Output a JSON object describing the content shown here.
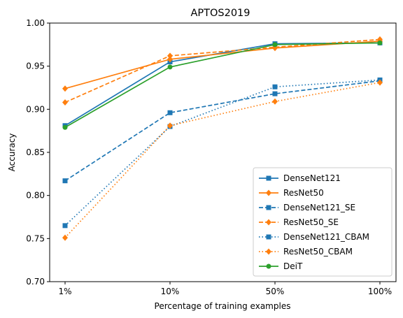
{
  "chart_data": {
    "type": "line",
    "title": "APTOS2019",
    "xlabel": "Percentage of training examples",
    "ylabel": "Accuracy",
    "categories": [
      "1%",
      "10%",
      "50%",
      "100%"
    ],
    "ylim": [
      0.7,
      1.0
    ],
    "yticks": [
      0.7,
      0.75,
      0.8,
      0.85,
      0.9,
      0.95,
      1.0
    ],
    "ytick_labels": [
      "0.70",
      "0.75",
      "0.80",
      "0.85",
      "0.90",
      "0.95",
      "1.00"
    ],
    "grid": false,
    "legend_position": "lower-right",
    "series": [
      {
        "name": "DenseNet121",
        "color": "#1f77b4",
        "line_style": "solid",
        "marker": "square",
        "values": [
          0.881,
          0.955,
          0.976,
          0.977
        ]
      },
      {
        "name": "ResNet50",
        "color": "#ff7f0e",
        "line_style": "solid",
        "marker": "diamond",
        "values": [
          0.924,
          0.958,
          0.971,
          0.979
        ]
      },
      {
        "name": "DenseNet121_SE",
        "color": "#1f77b4",
        "line_style": "dashed",
        "marker": "square",
        "values": [
          0.817,
          0.896,
          0.918,
          0.933
        ]
      },
      {
        "name": "ResNet50_SE",
        "color": "#ff7f0e",
        "line_style": "dashed",
        "marker": "diamond",
        "values": [
          0.908,
          0.962,
          0.972,
          0.981
        ]
      },
      {
        "name": "DenseNet121_CBAM",
        "color": "#1f77b4",
        "line_style": "dotted",
        "marker": "square",
        "values": [
          0.765,
          0.88,
          0.926,
          0.934
        ]
      },
      {
        "name": "ResNet50_CBAM",
        "color": "#ff7f0e",
        "line_style": "dotted",
        "marker": "diamond",
        "values": [
          0.751,
          0.881,
          0.909,
          0.931
        ]
      },
      {
        "name": "DeiT",
        "color": "#2ca02c",
        "line_style": "solid",
        "marker": "circle",
        "values": [
          0.879,
          0.949,
          0.975,
          0.977
        ]
      }
    ]
  }
}
